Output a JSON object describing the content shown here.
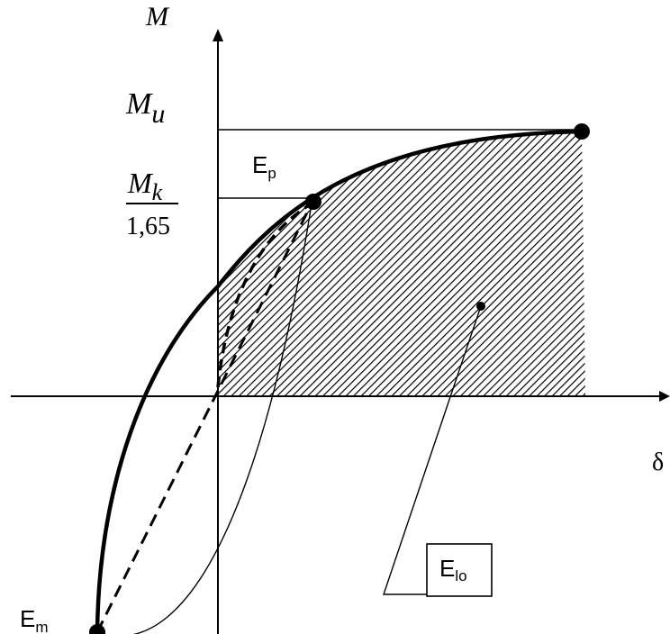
{
  "labels": {
    "y_axis": "M",
    "x_axis": "δ",
    "mu_main": "M",
    "mu_sub": "u",
    "mk_main": "M",
    "mk_sub": "k",
    "mk_denominator": "1,65",
    "ep_main": "E",
    "ep_sub": "p",
    "em_main": "E",
    "em_sub": "m",
    "elo_main": "E",
    "elo_sub": "lo"
  }
}
